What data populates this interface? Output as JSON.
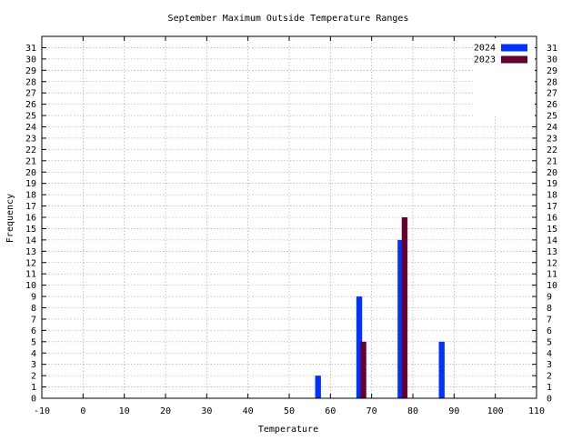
{
  "chart_data": {
    "type": "bar",
    "title": "September Maximum Outside Temperature Ranges",
    "xlabel": "Temperature",
    "ylabel": "Frequency",
    "xlim": [
      -10,
      110
    ],
    "ylim": [
      0,
      32
    ],
    "x_ticks": [
      -10,
      0,
      10,
      20,
      30,
      40,
      50,
      60,
      70,
      80,
      90,
      100,
      110
    ],
    "y_ticks": [
      0,
      1,
      2,
      3,
      4,
      5,
      6,
      7,
      8,
      9,
      10,
      11,
      12,
      13,
      14,
      15,
      16,
      17,
      18,
      19,
      20,
      21,
      22,
      23,
      24,
      25,
      26,
      27,
      28,
      29,
      30,
      31
    ],
    "grid": true,
    "legend_position": "top-right",
    "series": [
      {
        "name": "2024",
        "color": "#0033ff",
        "points": [
          {
            "x": 57,
            "y": 2
          },
          {
            "x": 67,
            "y": 9
          },
          {
            "x": 77,
            "y": 14
          },
          {
            "x": 87,
            "y": 5
          }
        ]
      },
      {
        "name": "2023",
        "color": "#660033",
        "points": [
          {
            "x": 68,
            "y": 5
          },
          {
            "x": 78,
            "y": 16
          }
        ]
      }
    ]
  }
}
